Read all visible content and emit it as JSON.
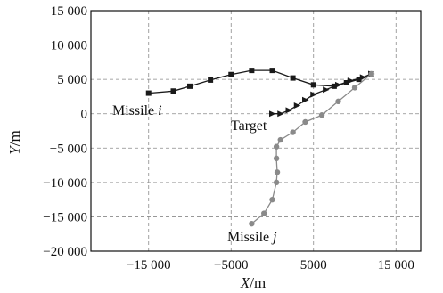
{
  "chart_data": {
    "type": "line",
    "title": "",
    "xlabel_var": "X",
    "xlabel_unit": "/m",
    "ylabel_var": "Y",
    "ylabel_unit": "/m",
    "xlim": [
      -22000,
      18000
    ],
    "ylim": [
      -20000,
      15000
    ],
    "grid": true,
    "xticks": [
      -15000,
      -5000,
      5000,
      15000
    ],
    "xtick_labels": [
      "−15 000",
      "−5000",
      "5000",
      "15 000"
    ],
    "yticks": [
      15000,
      10000,
      5000,
      0,
      -5000,
      -10000,
      -15000,
      -20000
    ],
    "ytick_labels": [
      "15 000",
      "10 000",
      "5 000",
      "0",
      "−5 000",
      "−10 000",
      "−15 000",
      "−20 000"
    ],
    "series": [
      {
        "name": "Missile i",
        "marker": "square",
        "color": "#1a1a1a",
        "x": [
          -15000,
          -12000,
          -10000,
          -7500,
          -5000,
          -2500,
          0,
          2500,
          5000,
          7500,
          9000,
          10500,
          12000
        ],
        "y": [
          3000,
          3300,
          4000,
          4900,
          5700,
          6300,
          6300,
          5200,
          4200,
          4000,
          4500,
          5000,
          5800
        ]
      },
      {
        "name": "Target",
        "marker": "triangle",
        "color": "#1a1a1a",
        "x": [
          0,
          1000,
          2000,
          3000,
          4000,
          5000,
          6500,
          8000,
          9500,
          11000,
          12000
        ],
        "y": [
          0,
          0,
          500,
          1200,
          2000,
          2800,
          3500,
          4200,
          4800,
          5300,
          5800
        ]
      },
      {
        "name": "Missile j",
        "marker": "circle",
        "color": "#8a8a8a",
        "x": [
          -2500,
          -1000,
          0,
          500,
          600,
          500,
          500,
          1000,
          2500,
          4000,
          6000,
          8000,
          10000,
          12000
        ],
        "y": [
          -16000,
          -14500,
          -12500,
          -10000,
          -8500,
          -6500,
          -4800,
          -3800,
          -2700,
          -1200,
          -200,
          1800,
          3800,
          5800
        ]
      }
    ],
    "annotations": [
      {
        "text_main": "Missile ",
        "text_var": "i"
      },
      {
        "text_main": "Target",
        "text_var": ""
      },
      {
        "text_main": "Missile ",
        "text_var": "j"
      }
    ]
  }
}
